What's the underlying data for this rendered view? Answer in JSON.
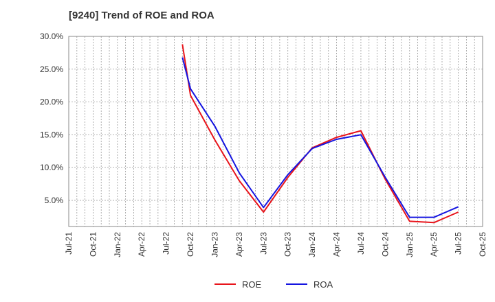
{
  "chart_data": {
    "type": "line",
    "title": "[9240]  Trend of ROE and ROA",
    "xlabel": "",
    "ylabel": "",
    "x_ticks": [
      "Jul-21",
      "Oct-21",
      "Jan-22",
      "Apr-22",
      "Jul-22",
      "Oct-22",
      "Jan-23",
      "Apr-23",
      "Jul-23",
      "Oct-23",
      "Jan-24",
      "Apr-24",
      "Jul-24",
      "Oct-24",
      "Jan-25",
      "Apr-25",
      "Jul-25",
      "Oct-25"
    ],
    "y_ticks": [
      "5.0%",
      "10.0%",
      "15.0%",
      "20.0%",
      "25.0%",
      "30.0%"
    ],
    "y_tick_values": [
      5,
      10,
      15,
      20,
      25,
      30
    ],
    "ylim": [
      1,
      30
    ],
    "grid": true,
    "legend_position": "bottom-center",
    "series": [
      {
        "name": "ROE",
        "color": "#e8141b",
        "x": [
          "Sep-22",
          "Oct-22",
          "Jan-23",
          "Apr-23",
          "Jul-23",
          "Oct-23",
          "Jan-24",
          "Apr-24",
          "Jul-24",
          "Oct-24",
          "Jan-25",
          "Apr-25",
          "Jul-25"
        ],
        "values": [
          28.8,
          21.0,
          14.2,
          8.0,
          3.2,
          8.5,
          13.0,
          14.6,
          15.6,
          8.2,
          1.8,
          1.6,
          3.2
        ]
      },
      {
        "name": "ROA",
        "color": "#1414e0",
        "x": [
          "Sep-22",
          "Oct-22",
          "Jan-23",
          "Apr-23",
          "Jul-23",
          "Oct-23",
          "Jan-24",
          "Apr-24",
          "Jul-24",
          "Oct-24",
          "Jan-25",
          "Apr-25",
          "Jul-25"
        ],
        "values": [
          26.8,
          22.0,
          16.3,
          9.2,
          3.9,
          8.9,
          12.9,
          14.3,
          15.0,
          8.5,
          2.4,
          2.4,
          4.0
        ]
      }
    ]
  }
}
